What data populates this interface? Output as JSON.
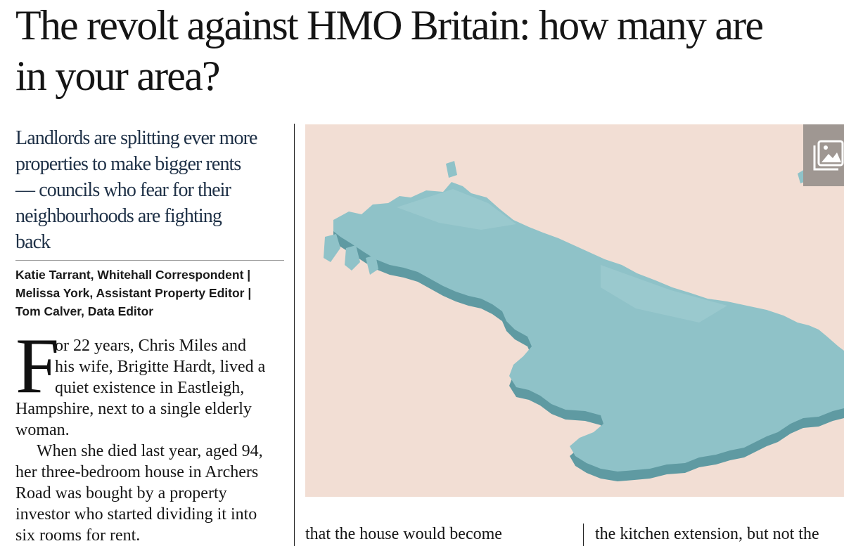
{
  "article": {
    "headline_lines": [
      "The revolt against HMO Britain: how many are",
      "in your area?"
    ],
    "standfirst_lines": [
      "Landlords are splitting ever more",
      "properties to make bigger rents",
      "— councils who fear for their",
      "neighbourhoods are fighting",
      "back"
    ],
    "byline_lines": [
      "Katie Tarrant, Whitehall Correspondent |",
      "Melissa York, Assistant Property Editor |",
      "Tom Calver, Data Editor"
    ],
    "dropcap": "F",
    "body_col1_lines": [
      "or 22 years, Chris Miles and",
      "his wife, Brigitte Hardt, lived a",
      "quiet existence in Eastleigh,",
      "Hampshire, next to a single elderly",
      "woman.",
      "When she died last year, aged 94,",
      "her three-bedroom house in Archers",
      "Road was bought by a property",
      "investor who started dividing it into",
      "six rooms for rent."
    ],
    "body_col2_line": "that the house would become",
    "body_col3_line": "the kitchen extension, but not the"
  },
  "image": {
    "background_color": "#f2ded4",
    "map_color": "#8fc2c8",
    "map_side_color": "#5f9aa2",
    "gallery_icon": "gallery-icon"
  }
}
